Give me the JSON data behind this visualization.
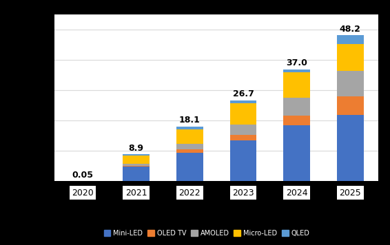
{
  "categories": [
    "2020",
    "2021",
    "2022",
    "2023",
    "2024",
    "2025"
  ],
  "totals": [
    "0.05",
    "8.9",
    "18.1",
    "26.7",
    "37.0",
    "48.2"
  ],
  "segments": {
    "blue": [
      0.03,
      4.8,
      9.5,
      13.5,
      18.5,
      22.0
    ],
    "orange": [
      0.005,
      0.4,
      1.0,
      1.8,
      3.2,
      6.0
    ],
    "gray": [
      0.005,
      0.6,
      1.8,
      3.5,
      5.8,
      8.5
    ],
    "yellow": [
      0.005,
      2.7,
      4.8,
      6.9,
      8.5,
      8.7
    ],
    "light_blue": [
      0.005,
      0.4,
      1.0,
      1.0,
      1.0,
      3.0
    ]
  },
  "colors": {
    "blue": "#4472C4",
    "orange": "#ED7D31",
    "gray": "#A5A5A5",
    "yellow": "#FFC000",
    "light_blue": "#5B9BD5"
  },
  "background_color": "#FFFFFF",
  "outer_background": "#000000",
  "plot_bg": "#F2F2F2",
  "grid_color": "#D9D9D9",
  "ylim": [
    0,
    55
  ],
  "yticks": [
    0,
    10,
    20,
    30,
    40,
    50
  ]
}
